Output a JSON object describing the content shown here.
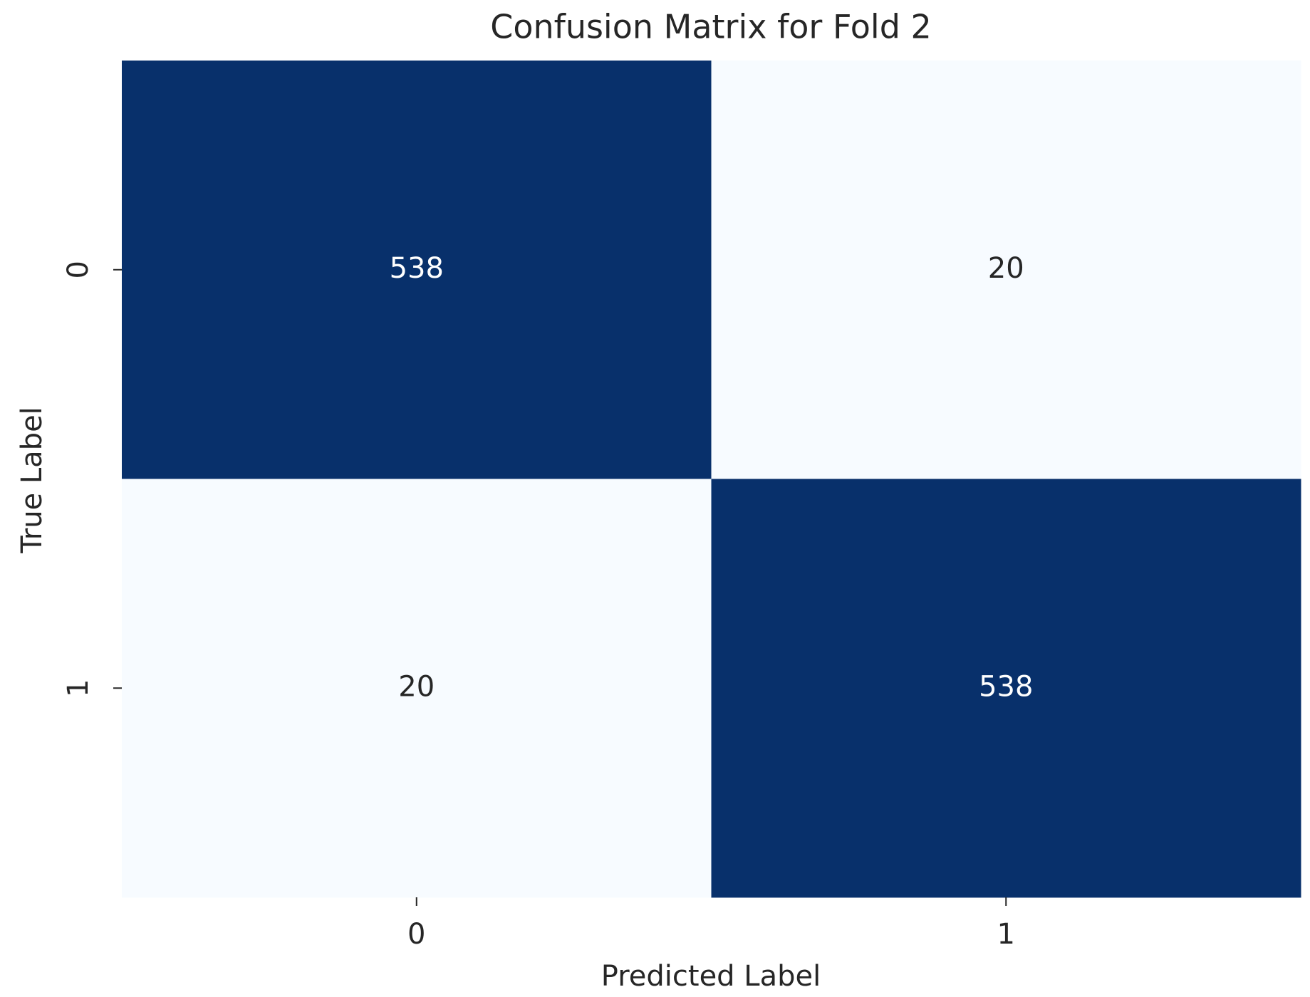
{
  "chart_data": {
    "type": "heatmap",
    "title": "Confusion Matrix for Fold 2",
    "x_label": "Predicted Label",
    "y_label": "True Label",
    "x_categories": [
      "0",
      "1"
    ],
    "y_categories": [
      "0",
      "1"
    ],
    "values": [
      [
        538,
        20
      ],
      [
        20,
        538
      ]
    ],
    "colormap": "Blues",
    "colors": [
      "#f7fbff",
      "#08306b"
    ]
  }
}
